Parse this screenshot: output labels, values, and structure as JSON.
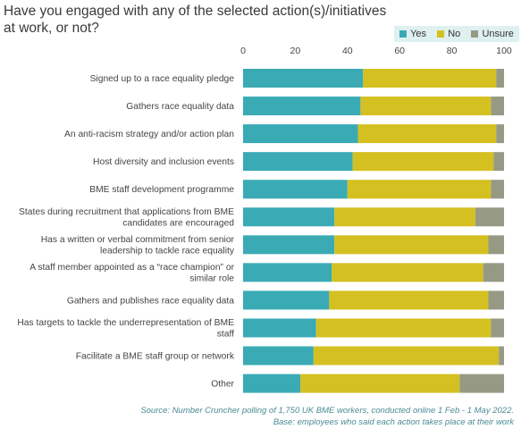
{
  "chart_data": {
    "type": "bar",
    "orientation": "horizontal",
    "stacked": true,
    "title": "Have you engaged with any of the selected action(s)/initiatives at work, or not?",
    "categories": [
      "Signed up to a race equality pledge",
      "Gathers race equality data",
      "An anti-racism strategy and/or action plan",
      "Host diversity and inclusion events",
      "BME staff development programme",
      "States during recruitment that applications from BME candidates are encouraged",
      "Has a written or verbal commitment from senior leadership to tackle race equality",
      "A staff member appointed as a “race champion” or similar role",
      "Gathers and publishes race equality data",
      "Has targets to tackle the underrepresentation of BME staff",
      "Facilitate a BME staff group or network",
      "Other"
    ],
    "category_lines": [
      [
        "Signed up to a race equality pledge"
      ],
      [
        "Gathers race equality data"
      ],
      [
        "An anti-racism strategy and/or action plan"
      ],
      [
        "Host diversity and inclusion events"
      ],
      [
        "BME staff development programme"
      ],
      [
        "States during recruitment that applications from BME",
        "candidates are encouraged"
      ],
      [
        "Has a written or verbal commitment from senior",
        "leadership to tackle race equality"
      ],
      [
        "A staff member appointed as a “race champion” or",
        "similar role"
      ],
      [
        "Gathers and publishes race equality data"
      ],
      [
        "Has targets to tackle the underrepresentation of BME",
        "staff"
      ],
      [
        "Facilitate a BME staff group or network"
      ],
      [
        "Other"
      ]
    ],
    "series": [
      {
        "name": "Yes",
        "color": "#3aabb5",
        "values": [
          46,
          45,
          44,
          42,
          40,
          35,
          35,
          34,
          33,
          28,
          27,
          22
        ]
      },
      {
        "name": "No",
        "color": "#d5c021",
        "values": [
          51,
          50,
          53,
          54,
          55,
          54,
          59,
          58,
          61,
          67,
          71,
          61
        ]
      },
      {
        "name": "Unsure",
        "color": "#969a85",
        "values": [
          3,
          5,
          3,
          4,
          5,
          11,
          6,
          8,
          6,
          5,
          2,
          17
        ]
      }
    ],
    "xlim": [
      0,
      100
    ],
    "xticks": [
      "0",
      "20",
      "40",
      "60",
      "80",
      "100"
    ],
    "xaxis_position": "top",
    "legend_position": "top-right",
    "grid": false,
    "xlabel": "",
    "ylabel": ""
  },
  "source_line1": "Source: Number Cruncher polling of 1,750 UK BME workers, conducted online 1 Feb -      1 May 2022.",
  "source_line2": "Base: employees who said each action takes place at their work"
}
